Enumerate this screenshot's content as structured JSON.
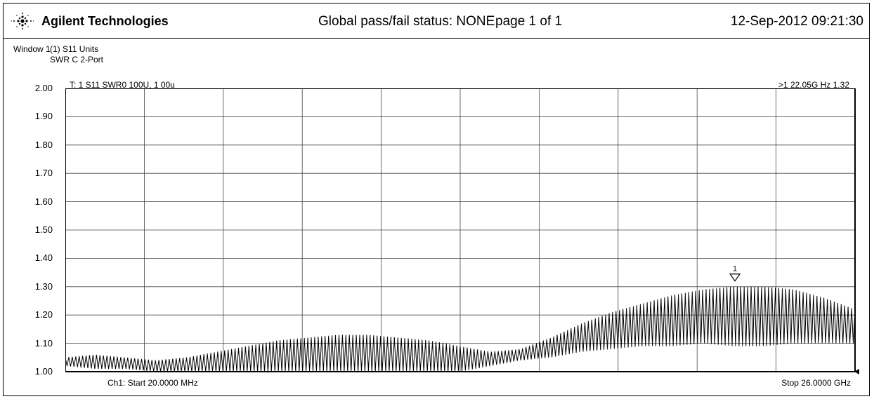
{
  "header": {
    "brand": "Agilent Technologies",
    "status": "Global pass/fail status: NONE",
    "page": "page  1 of 1",
    "timestamp": "12-Sep-2012 09:21:30",
    "logo_icon": "agilent-spark-icon"
  },
  "window": {
    "label": "Window 1",
    "title_line1": "(1) S11 Units",
    "title_line2": "SWR C 2-Port"
  },
  "trace_label": "T: 1   S11 SWR0 100U,  1 00u",
  "marker_label": ">1   22.05G Hz   1.32",
  "start_label": "Ch1: Start 20.0000 MHz",
  "stop_label": "Stop 26.0000 GHz",
  "chart_data": {
    "type": "line",
    "ylim": [
      1.0,
      2.0
    ],
    "xlim": [
      0.02,
      26.0
    ],
    "y_ticks": [
      "2.00",
      "1.90",
      "1.80",
      "1.70",
      "1.60",
      "1.50",
      "1.40",
      "1.30",
      "1.20",
      "1.10",
      "1.00"
    ],
    "grid": true,
    "x_divisions": 10,
    "marker": {
      "label": "1",
      "x": 22.05,
      "y": 1.32
    },
    "series": [
      {
        "x": [
          0.02,
          1.0,
          2.0,
          3.0,
          4.0,
          5.0,
          6.0,
          7.0,
          8.0,
          9.0,
          10.0,
          11.0,
          12.0,
          13.0,
          14.0,
          15.0,
          16.0,
          17.0,
          18.0,
          19.0,
          20.0,
          21.0,
          22.0,
          23.0,
          24.0,
          25.0,
          26.0
        ],
        "upper": [
          1.05,
          1.06,
          1.05,
          1.04,
          1.05,
          1.07,
          1.09,
          1.11,
          1.12,
          1.13,
          1.13,
          1.12,
          1.11,
          1.09,
          1.07,
          1.08,
          1.12,
          1.17,
          1.21,
          1.24,
          1.27,
          1.29,
          1.3,
          1.3,
          1.29,
          1.26,
          1.22
        ],
        "lower": [
          1.02,
          1.01,
          1.01,
          1.0,
          1.0,
          0.99,
          0.98,
          0.98,
          0.99,
          0.98,
          0.98,
          0.99,
          0.99,
          1.0,
          1.02,
          1.04,
          1.05,
          1.07,
          1.08,
          1.09,
          1.09,
          1.1,
          1.09,
          1.09,
          1.1,
          1.1,
          1.1
        ],
        "cycles": 228
      }
    ]
  }
}
